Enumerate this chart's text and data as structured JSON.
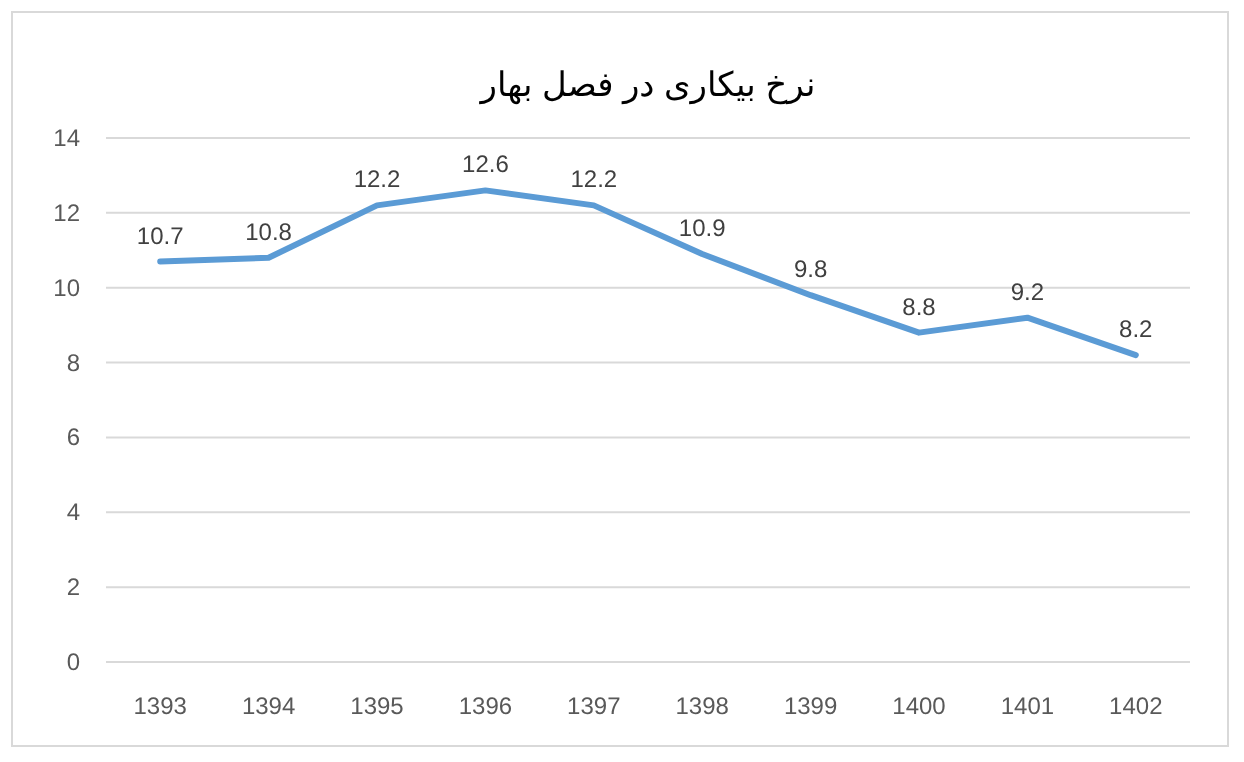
{
  "chart_data": {
    "type": "line",
    "title": "نرخ بیکاری در فصل بهار",
    "categories": [
      "1393",
      "1394",
      "1395",
      "1396",
      "1397",
      "1398",
      "1399",
      "1400",
      "1401",
      "1402"
    ],
    "series": [
      {
        "color": "#5b9bd5",
        "values": [
          10.7,
          10.8,
          12.2,
          12.6,
          12.2,
          10.9,
          9.8,
          8.8,
          9.2,
          8.2
        ]
      }
    ],
    "ylim": [
      0,
      14
    ],
    "yticks": [
      0,
      2,
      4,
      6,
      8,
      10,
      12,
      14
    ],
    "grid": "y",
    "data_labels": true,
    "marker": "none",
    "line_style": "solid"
  }
}
